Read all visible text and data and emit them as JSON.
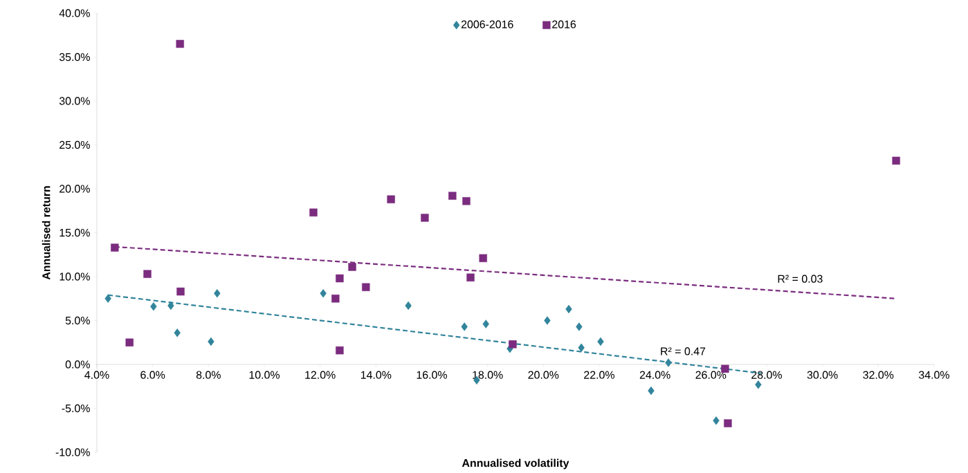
{
  "chart_data": {
    "type": "scatter",
    "xlabel": "Annualised volatility",
    "ylabel": "Annualised return",
    "xlim": [
      4,
      34
    ],
    "ylim": [
      -10,
      40
    ],
    "xticks": [
      {
        "value": 4,
        "label": "4.0%"
      },
      {
        "value": 6,
        "label": "6.0%"
      },
      {
        "value": 8,
        "label": "8.0%"
      },
      {
        "value": 10,
        "label": "10.0%"
      },
      {
        "value": 12,
        "label": "12.0%"
      },
      {
        "value": 14,
        "label": "14.0%"
      },
      {
        "value": 16,
        "label": "16.0%"
      },
      {
        "value": 18,
        "label": "18.0%"
      },
      {
        "value": 20,
        "label": "20.0%"
      },
      {
        "value": 22,
        "label": "22.0%"
      },
      {
        "value": 24,
        "label": "24.0%"
      },
      {
        "value": 26,
        "label": "26.0%"
      },
      {
        "value": 28,
        "label": "28.0%"
      },
      {
        "value": 30,
        "label": "30.0%"
      },
      {
        "value": 32,
        "label": "32.0%"
      },
      {
        "value": 34,
        "label": "34.0%"
      }
    ],
    "yticks": [
      {
        "value": -10,
        "label": "-10.0%"
      },
      {
        "value": -5,
        "label": "-5.0%"
      },
      {
        "value": 0,
        "label": "0.0%"
      },
      {
        "value": 5,
        "label": "5.0%"
      },
      {
        "value": 10,
        "label": "10.0%"
      },
      {
        "value": 15,
        "label": "15.0%"
      },
      {
        "value": 20,
        "label": "20.0%"
      },
      {
        "value": 25,
        "label": "25.0%"
      },
      {
        "value": 30,
        "label": "30.0%"
      },
      {
        "value": 35,
        "label": "35.0%"
      },
      {
        "value": 40,
        "label": "40.0%"
      }
    ],
    "legend": "top",
    "grid": false,
    "series": [
      {
        "name": "2006-2016",
        "marker": "diamond",
        "color": "#31849b",
        "x": [
          4.4,
          6.03,
          6.65,
          6.88,
          8.09,
          8.31,
          12.11,
          15.16,
          17.17,
          17.61,
          17.94,
          18.8,
          20.14,
          20.91,
          21.28,
          21.36,
          22.05,
          23.86,
          24.48,
          26.19,
          27.7
        ],
        "values": [
          7.5,
          6.6,
          6.7,
          3.6,
          2.6,
          8.1,
          8.1,
          6.7,
          4.3,
          -1.8,
          4.6,
          1.8,
          5.0,
          6.3,
          4.3,
          1.9,
          2.6,
          -3.0,
          0.2,
          -6.4,
          -2.3
        ]
      },
      {
        "name": "2016",
        "marker": "square",
        "color": "#7b2c7f",
        "x": [
          4.64,
          5.17,
          5.81,
          6.98,
          7.0,
          11.76,
          12.55,
          12.7,
          12.7,
          13.15,
          13.64,
          14.54,
          15.75,
          16.74,
          17.24,
          17.39,
          17.84,
          18.9,
          26.51,
          26.61,
          32.64
        ],
        "values": [
          13.3,
          2.5,
          10.3,
          36.5,
          8.3,
          17.3,
          7.5,
          9.8,
          1.6,
          11.1,
          8.8,
          18.8,
          16.7,
          19.2,
          18.6,
          9.9,
          12.1,
          2.3,
          -0.5,
          -6.7,
          23.2
        ]
      },
      {
        "type": "line",
        "line_style": "dashed",
        "marker": "none",
        "color": "#31849b",
        "x": [
          4.4,
          27.8
        ],
        "values": [
          7.9,
          -1.0
        ]
      },
      {
        "type": "line",
        "line_style": "dashed",
        "marker": "none",
        "color": "#7b2c7f",
        "x": [
          4.64,
          32.64
        ],
        "values": [
          13.4,
          7.5
        ]
      }
    ],
    "annotations": [
      "R² = 0.03",
      "R² = 0.47"
    ]
  }
}
